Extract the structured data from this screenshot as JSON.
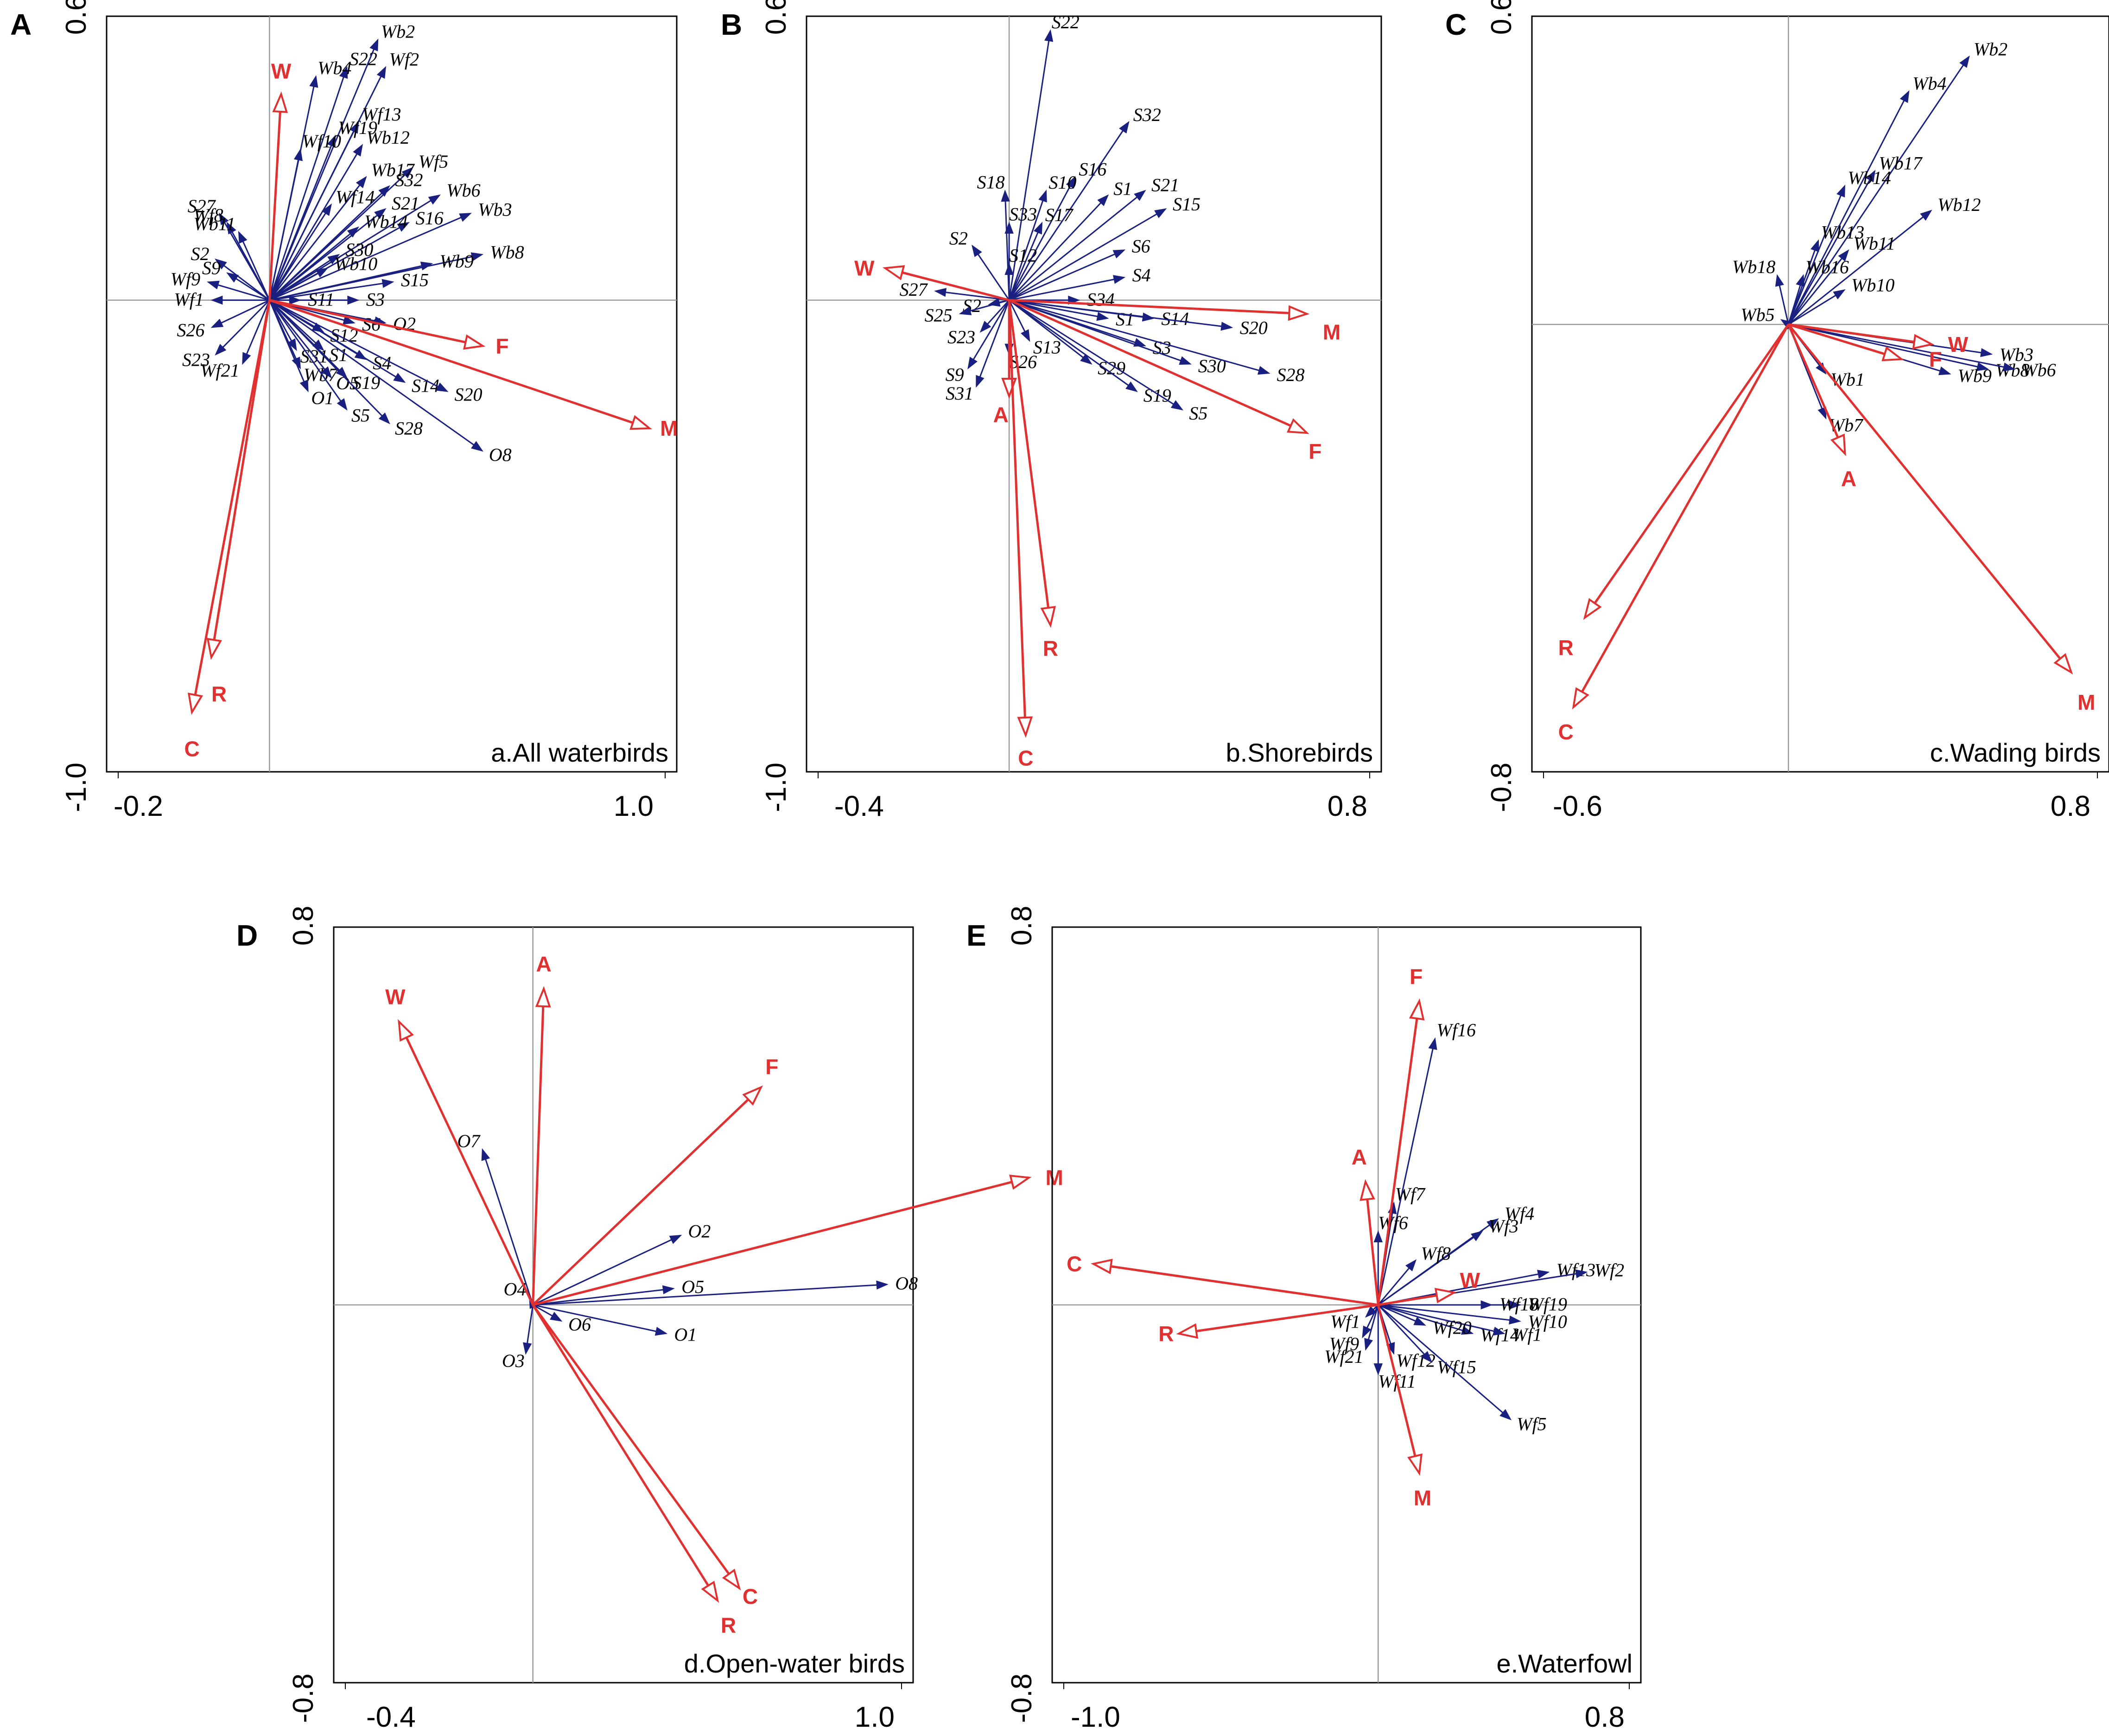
{
  "chart_data": [
    {
      "type": "scatter",
      "panel": "A",
      "title": "a.All waterbirds",
      "x_ticks": [
        "-0.2",
        "1.0"
      ],
      "y_ticks": [
        "0.6",
        "-1.0"
      ],
      "xlim": [
        -0.42,
        1.05
      ],
      "ylim": [
        -1.03,
        0.62
      ],
      "origin": [
        0,
        0
      ],
      "env": [
        {
          "name": "W",
          "x": 0.03,
          "y": 0.45,
          "lx": 0.03,
          "ly": 0.5
        },
        {
          "name": "F",
          "x": 0.55,
          "y": -0.1,
          "lx": 0.6,
          "ly": -0.1
        },
        {
          "name": "M",
          "x": 0.98,
          "y": -0.28,
          "lx": 1.03,
          "ly": -0.28
        },
        {
          "name": "R",
          "x": -0.15,
          "y": -0.78,
          "lx": -0.13,
          "ly": -0.86
        },
        {
          "name": "C",
          "x": -0.2,
          "y": -0.9,
          "lx": -0.2,
          "ly": -0.98
        }
      ],
      "species": [
        {
          "name": "Wb2",
          "x": 0.28,
          "y": 0.57
        },
        {
          "name": "S22",
          "x": 0.2,
          "y": 0.51
        },
        {
          "name": "Wf2",
          "x": 0.3,
          "y": 0.51
        },
        {
          "name": "Wb4",
          "x": 0.12,
          "y": 0.49
        },
        {
          "name": "Wf13",
          "x": 0.23,
          "y": 0.39
        },
        {
          "name": "Wf19",
          "x": 0.17,
          "y": 0.36
        },
        {
          "name": "Wb12",
          "x": 0.24,
          "y": 0.34
        },
        {
          "name": "Wf10",
          "x": 0.08,
          "y": 0.33
        },
        {
          "name": "Wf5",
          "x": 0.37,
          "y": 0.29
        },
        {
          "name": "Wb17",
          "x": 0.25,
          "y": 0.27
        },
        {
          "name": "S32",
          "x": 0.31,
          "y": 0.25
        },
        {
          "name": "Wb6",
          "x": 0.44,
          "y": 0.23
        },
        {
          "name": "Wf14",
          "x": 0.16,
          "y": 0.21
        },
        {
          "name": "S21",
          "x": 0.3,
          "y": 0.2
        },
        {
          "name": "Wb3",
          "x": 0.52,
          "y": 0.19
        },
        {
          "name": "S16",
          "x": 0.36,
          "y": 0.17
        },
        {
          "name": "Wb14",
          "x": 0.23,
          "y": 0.16
        },
        {
          "name": "S27",
          "x": -0.13,
          "y": 0.19
        },
        {
          "name": "Wf8",
          "x": -0.11,
          "y": 0.17
        },
        {
          "name": "Wb11",
          "x": -0.08,
          "y": 0.15
        },
        {
          "name": "Wb8",
          "x": 0.55,
          "y": 0.1
        },
        {
          "name": "S30",
          "x": 0.18,
          "y": 0.1
        },
        {
          "name": "Wb10",
          "x": 0.15,
          "y": 0.07
        },
        {
          "name": "Wb9",
          "x": 0.42,
          "y": 0.08
        },
        {
          "name": "S15",
          "x": 0.32,
          "y": 0.04
        },
        {
          "name": "S2",
          "x": -0.14,
          "y": 0.09
        },
        {
          "name": "S9",
          "x": -0.11,
          "y": 0.06
        },
        {
          "name": "Wf9",
          "x": -0.16,
          "y": 0.04
        },
        {
          "name": "Wf1",
          "x": -0.15,
          "y": 0.0
        },
        {
          "name": "S3",
          "x": 0.23,
          "y": 0.0
        },
        {
          "name": "S11",
          "x": 0.08,
          "y": 0.0
        },
        {
          "name": "S26",
          "x": -0.15,
          "y": -0.06
        },
        {
          "name": "S6",
          "x": 0.22,
          "y": -0.05
        },
        {
          "name": "O2",
          "x": 0.3,
          "y": -0.05
        },
        {
          "name": "S12",
          "x": 0.14,
          "y": -0.07
        },
        {
          "name": "S23",
          "x": -0.14,
          "y": -0.12
        },
        {
          "name": "Wf21",
          "x": -0.07,
          "y": -0.14
        },
        {
          "name": "S31",
          "x": 0.07,
          "y": -0.11
        },
        {
          "name": "S1",
          "x": 0.14,
          "y": -0.11
        },
        {
          "name": "S4",
          "x": 0.25,
          "y": -0.13
        },
        {
          "name": "Wb7",
          "x": 0.08,
          "y": -0.15
        },
        {
          "name": "O5",
          "x": 0.16,
          "y": -0.17
        },
        {
          "name": "S19",
          "x": 0.2,
          "y": -0.17
        },
        {
          "name": "O1",
          "x": 0.1,
          "y": -0.2
        },
        {
          "name": "S14",
          "x": 0.35,
          "y": -0.18
        },
        {
          "name": "S20",
          "x": 0.46,
          "y": -0.2
        },
        {
          "name": "S5",
          "x": 0.2,
          "y": -0.24
        },
        {
          "name": "S28",
          "x": 0.31,
          "y": -0.27
        },
        {
          "name": "O8",
          "x": 0.55,
          "y": -0.33
        }
      ]
    },
    {
      "type": "scatter",
      "panel": "B",
      "title": "b.Shorebirds",
      "x_ticks": [
        "-0.4",
        "0.8"
      ],
      "y_ticks": [
        "0.6",
        "-1.0"
      ],
      "xlim": [
        -0.49,
        0.9
      ],
      "ylim": [
        -1.03,
        0.62
      ],
      "origin": [
        0,
        0
      ],
      "env": [
        {
          "name": "W",
          "x": -0.3,
          "y": 0.07,
          "lx": -0.35,
          "ly": 0.07
        },
        {
          "name": "M",
          "x": 0.72,
          "y": -0.03,
          "lx": 0.78,
          "ly": -0.07
        },
        {
          "name": "F",
          "x": 0.72,
          "y": -0.29,
          "lx": 0.74,
          "ly": -0.33
        },
        {
          "name": "A",
          "x": 0.0,
          "y": -0.21,
          "lx": -0.02,
          "ly": -0.25
        },
        {
          "name": "R",
          "x": 0.1,
          "y": -0.71,
          "lx": 0.1,
          "ly": -0.76
        },
        {
          "name": "C",
          "x": 0.04,
          "y": -0.95,
          "lx": 0.04,
          "ly": -1.0
        }
      ],
      "species": [
        {
          "name": "S22",
          "x": 0.1,
          "y": 0.59
        },
        {
          "name": "S32",
          "x": 0.29,
          "y": 0.39
        },
        {
          "name": "S16",
          "x": 0.16,
          "y": 0.27
        },
        {
          "name": "S18",
          "x": -0.01,
          "y": 0.24
        },
        {
          "name": "S10",
          "x": 0.09,
          "y": 0.24
        },
        {
          "name": "S21",
          "x": 0.33,
          "y": 0.24
        },
        {
          "name": "S1",
          "x": 0.24,
          "y": 0.23
        },
        {
          "name": "S15",
          "x": 0.38,
          "y": 0.2
        },
        {
          "name": "S33",
          "x": 0.0,
          "y": 0.17
        },
        {
          "name": "S17",
          "x": 0.08,
          "y": 0.17
        },
        {
          "name": "S6",
          "x": 0.28,
          "y": 0.11
        },
        {
          "name": "S2",
          "x": -0.09,
          "y": 0.12
        },
        {
          "name": "S12",
          "x": 0.0,
          "y": 0.08
        },
        {
          "name": "S4",
          "x": 0.28,
          "y": 0.05
        },
        {
          "name": "S27",
          "x": -0.18,
          "y": 0.02
        },
        {
          "name": "S34",
          "x": 0.17,
          "y": 0.0
        },
        {
          "name": "S2",
          "x": -0.05,
          "y": -0.01
        },
        {
          "name": "S25",
          "x": -0.12,
          "y": -0.03
        },
        {
          "name": "S1",
          "x": 0.24,
          "y": -0.04
        },
        {
          "name": "S14",
          "x": 0.35,
          "y": -0.04
        },
        {
          "name": "S20",
          "x": 0.54,
          "y": -0.06
        },
        {
          "name": "S23",
          "x": -0.07,
          "y": -0.07
        },
        {
          "name": "S13",
          "x": 0.05,
          "y": -0.09
        },
        {
          "name": "S3",
          "x": 0.33,
          "y": -0.1
        },
        {
          "name": "S26",
          "x": 0.0,
          "y": -0.12
        },
        {
          "name": "S29",
          "x": 0.2,
          "y": -0.14
        },
        {
          "name": "S30",
          "x": 0.44,
          "y": -0.14
        },
        {
          "name": "S9",
          "x": -0.1,
          "y": -0.15
        },
        {
          "name": "S28",
          "x": 0.63,
          "y": -0.16
        },
        {
          "name": "S31",
          "x": -0.08,
          "y": -0.19
        },
        {
          "name": "S19",
          "x": 0.31,
          "y": -0.2
        },
        {
          "name": "S5",
          "x": 0.42,
          "y": -0.24
        }
      ]
    },
    {
      "type": "scatter",
      "panel": "C",
      "title": "c.Wading birds",
      "x_ticks": [
        "-0.6",
        "0.8"
      ],
      "y_ticks": [
        "0.6",
        "-0.8"
      ],
      "xlim": [
        -0.68,
        0.85
      ],
      "ylim": [
        -0.9,
        0.62
      ],
      "origin": [
        0,
        0
      ],
      "env": [
        {
          "name": "W",
          "x": 0.38,
          "y": -0.04,
          "lx": 0.45,
          "ly": -0.04
        },
        {
          "name": "F",
          "x": 0.3,
          "y": -0.07,
          "lx": 0.39,
          "ly": -0.07
        },
        {
          "name": "A",
          "x": 0.15,
          "y": -0.26,
          "lx": 0.16,
          "ly": -0.31
        },
        {
          "name": "M",
          "x": 0.75,
          "y": -0.7,
          "lx": 0.79,
          "ly": -0.76
        },
        {
          "name": "R",
          "x": -0.54,
          "y": -0.59,
          "lx": -0.59,
          "ly": -0.65
        },
        {
          "name": "C",
          "x": -0.57,
          "y": -0.77,
          "lx": -0.59,
          "ly": -0.82
        }
      ],
      "species": [
        {
          "name": "Wb2",
          "x": 0.48,
          "y": 0.54
        },
        {
          "name": "Wb4",
          "x": 0.32,
          "y": 0.47
        },
        {
          "name": "Wb17",
          "x": 0.23,
          "y": 0.31
        },
        {
          "name": "Wb12",
          "x": 0.38,
          "y": 0.23
        },
        {
          "name": "Wb14",
          "x": 0.15,
          "y": 0.28
        },
        {
          "name": "Wb13",
          "x": 0.08,
          "y": 0.17
        },
        {
          "name": "Wb11",
          "x": 0.16,
          "y": 0.15
        },
        {
          "name": "Wb18",
          "x": -0.03,
          "y": 0.1
        },
        {
          "name": "Wb16",
          "x": 0.04,
          "y": 0.1
        },
        {
          "name": "Wb10",
          "x": 0.15,
          "y": 0.07
        },
        {
          "name": "Wb5",
          "x": -0.02,
          "y": 0.01
        },
        {
          "name": "Wb3",
          "x": 0.54,
          "y": -0.06
        },
        {
          "name": "Wb8",
          "x": 0.53,
          "y": -0.09
        },
        {
          "name": "Wb6",
          "x": 0.6,
          "y": -0.09
        },
        {
          "name": "Wb9",
          "x": 0.43,
          "y": -0.1
        },
        {
          "name": "Wb1",
          "x": 0.1,
          "y": -0.1
        },
        {
          "name": "Wb7",
          "x": 0.1,
          "y": -0.19
        }
      ]
    },
    {
      "type": "scatter",
      "panel": "D",
      "title": "d.Open-water birds",
      "x_ticks": [
        "-0.4",
        "1.0"
      ],
      "y_ticks": [
        "0.8",
        "-0.8"
      ],
      "xlim": [
        -0.55,
        1.05
      ],
      "ylim": [
        -0.92,
        0.92
      ],
      "origin": [
        0,
        0
      ],
      "env": [
        {
          "name": "W",
          "x": -0.37,
          "y": 0.69,
          "lx": -0.38,
          "ly": 0.75
        },
        {
          "name": "A",
          "x": 0.03,
          "y": 0.77,
          "lx": 0.03,
          "ly": 0.83
        },
        {
          "name": "F",
          "x": 0.63,
          "y": 0.53,
          "lx": 0.66,
          "ly": 0.58
        },
        {
          "name": "M",
          "x": 1.37,
          "y": 0.31,
          "lx": 1.44,
          "ly": 0.31
        },
        {
          "name": "C",
          "x": 0.57,
          "y": -0.69,
          "lx": 0.6,
          "ly": -0.71
        },
        {
          "name": "R",
          "x": 0.51,
          "y": -0.72,
          "lx": 0.54,
          "ly": -0.78
        }
      ],
      "species": [
        {
          "name": "O7",
          "x": -0.14,
          "y": 0.38
        },
        {
          "name": "O2",
          "x": 0.41,
          "y": 0.17
        },
        {
          "name": "O8",
          "x": 0.98,
          "y": 0.05
        },
        {
          "name": "O5",
          "x": 0.39,
          "y": 0.04
        },
        {
          "name": "O4",
          "x": -0.01,
          "y": 0.02
        },
        {
          "name": "O6",
          "x": 0.08,
          "y": -0.04
        },
        {
          "name": "O1",
          "x": 0.37,
          "y": -0.07
        },
        {
          "name": "O3",
          "x": -0.02,
          "y": -0.12
        }
      ]
    },
    {
      "type": "scatter",
      "panel": "E",
      "title": "e.Waterfowl",
      "x_ticks": [
        "-1.0",
        "0.8"
      ],
      "y_ticks": [
        "0.8",
        "-0.8"
      ],
      "xlim": [
        -1.03,
        0.83
      ],
      "ylim": [
        -0.92,
        0.92
      ],
      "origin": [
        0,
        0
      ],
      "env": [
        {
          "name": "F",
          "x": 0.13,
          "y": 0.74,
          "lx": 0.12,
          "ly": 0.8
        },
        {
          "name": "A",
          "x": -0.04,
          "y": 0.3,
          "lx": -0.06,
          "ly": 0.36
        },
        {
          "name": "W",
          "x": 0.24,
          "y": 0.03,
          "lx": 0.29,
          "ly": 0.06
        },
        {
          "name": "C",
          "x": -0.9,
          "y": 0.1,
          "lx": -0.96,
          "ly": 0.1
        },
        {
          "name": "R",
          "x": -0.63,
          "y": -0.07,
          "lx": -0.67,
          "ly": -0.07
        },
        {
          "name": "M",
          "x": 0.13,
          "y": -0.41,
          "lx": 0.14,
          "ly": -0.47
        }
      ],
      "species": [
        {
          "name": "Wf16",
          "x": 0.18,
          "y": 0.65
        },
        {
          "name": "Wf7",
          "x": 0.05,
          "y": 0.25
        },
        {
          "name": "Wf4",
          "x": 0.38,
          "y": 0.21
        },
        {
          "name": "Wf3",
          "x": 0.33,
          "y": 0.18
        },
        {
          "name": "Wf6",
          "x": 0.0,
          "y": 0.18
        },
        {
          "name": "Wf13",
          "x": 0.54,
          "y": 0.08
        },
        {
          "name": "Wf2",
          "x": 0.66,
          "y": 0.08
        },
        {
          "name": "Wf8",
          "x": 0.12,
          "y": 0.11
        },
        {
          "name": "Wf19",
          "x": 0.45,
          "y": 0.0
        },
        {
          "name": "Wf18",
          "x": 0.36,
          "y": 0.0
        },
        {
          "name": "Wf10",
          "x": 0.45,
          "y": -0.04
        },
        {
          "name": "Wf14",
          "x": 0.3,
          "y": -0.07
        },
        {
          "name": "Wf1",
          "x": 0.4,
          "y": -0.07
        },
        {
          "name": "Wf20",
          "x": 0.15,
          "y": -0.05
        },
        {
          "name": "Wf1",
          "x": -0.04,
          "y": -0.03
        },
        {
          "name": "Wf9",
          "x": -0.05,
          "y": -0.08
        },
        {
          "name": "Wf21",
          "x": -0.04,
          "y": -0.11
        },
        {
          "name": "Wf12",
          "x": 0.05,
          "y": -0.12
        },
        {
          "name": "Wf15",
          "x": 0.17,
          "y": -0.14
        },
        {
          "name": "Wf11",
          "x": 0.0,
          "y": -0.17
        },
        {
          "name": "Wf5",
          "x": 0.42,
          "y": -0.28
        }
      ]
    }
  ]
}
